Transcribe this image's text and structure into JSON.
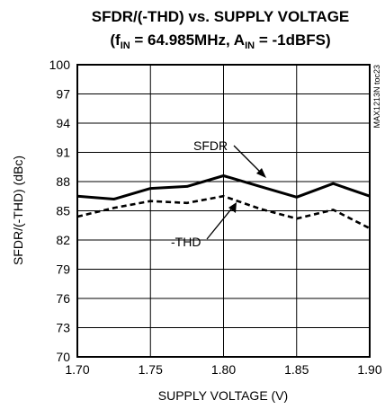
{
  "chart_data": {
    "type": "line",
    "title_main": "SFDR/(-THD) vs. SUPPLY VOLTAGE",
    "title_sub_open": "(f",
    "title_sub_in1": "IN",
    "title_sub_mid": " = 64.985MHz, A",
    "title_sub_in2": "IN",
    "title_sub_close": " = -1dBFS)",
    "xlabel": "SUPPLY VOLTAGE (V)",
    "ylabel": "SFDR/(-THD) (dBc)",
    "side_label": "MAX1213N toc23",
    "xlim": [
      1.7,
      1.9
    ],
    "ylim": [
      70,
      100
    ],
    "xticks": [
      "1.70",
      "1.75",
      "1.80",
      "1.85",
      "1.90"
    ],
    "yticks": [
      "70",
      "73",
      "76",
      "79",
      "82",
      "85",
      "88",
      "91",
      "94",
      "97",
      "100"
    ],
    "grid": true,
    "x": [
      1.7,
      1.725,
      1.75,
      1.775,
      1.8,
      1.825,
      1.85,
      1.875,
      1.9
    ],
    "series": [
      {
        "name": "SFDR",
        "style": "solid",
        "values": [
          86.5,
          86.2,
          87.3,
          87.5,
          88.6,
          87.5,
          86.4,
          87.8,
          86.5
        ]
      },
      {
        "name": "-THD",
        "style": "dashed",
        "values": [
          84.4,
          85.3,
          86.0,
          85.8,
          86.5,
          85.2,
          84.2,
          85.1,
          83.2
        ]
      }
    ],
    "annotations": [
      {
        "text": "SFDR",
        "series": "SFDR"
      },
      {
        "text": "-THD",
        "series": "-THD"
      }
    ]
  }
}
